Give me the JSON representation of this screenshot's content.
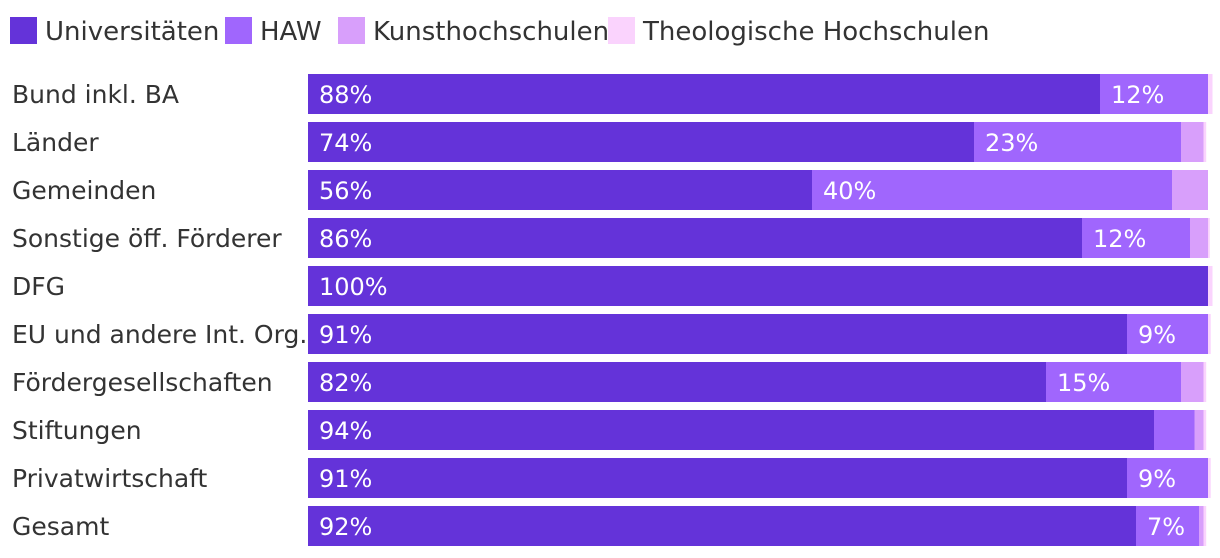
{
  "chart_data": {
    "type": "bar",
    "orientation": "horizontal",
    "stacked": true,
    "normalized": true,
    "title": "",
    "xlabel": "",
    "ylabel": "",
    "xlim": [
      0,
      100
    ],
    "unit": "%",
    "grid": false,
    "legend_position": "top-left",
    "categories": [
      "Bund inkl. BA",
      "Länder",
      "Gemeinden",
      "Sonstige öff. Förderer",
      "DFG",
      "EU und andere Int. Org.",
      "Fördergesellschaften",
      "Stiftungen",
      "Privatwirtschaft",
      "Gesamt"
    ],
    "series": [
      {
        "name": "Universitäten",
        "color": "#6433d9",
        "values": [
          88,
          74,
          56,
          86,
          100,
          91,
          82,
          94,
          91,
          92
        ],
        "labels": [
          "88%",
          "74%",
          "56%",
          "86%",
          "100%",
          "91%",
          "82%",
          "94%",
          "91%",
          "92%"
        ]
      },
      {
        "name": "HAW",
        "color": "#a066fd",
        "values": [
          12,
          23,
          40,
          12,
          0,
          9,
          15,
          4.5,
          9,
          7
        ],
        "labels": [
          "12%",
          "23%",
          "40%",
          "12%",
          "",
          "9%",
          "15%",
          "",
          "9%",
          "7%"
        ]
      },
      {
        "name": "Kunsthochschulen",
        "color": "#d89ffb",
        "values": [
          0,
          2.5,
          4,
          2,
          0,
          0,
          2.5,
          1,
          0,
          0.5
        ],
        "labels": [
          "",
          "",
          "",
          "",
          "",
          "",
          "",
          "",
          "",
          ""
        ]
      },
      {
        "name": "Theologische Hochschulen",
        "color": "#fad3fd",
        "values": [
          0.5,
          0.3,
          0,
          0.2,
          0.5,
          0.3,
          0.3,
          0.3,
          0.3,
          0.3
        ],
        "labels": [
          "",
          "",
          "",
          "",
          "",
          "",
          "",
          "",
          "",
          ""
        ]
      }
    ]
  }
}
